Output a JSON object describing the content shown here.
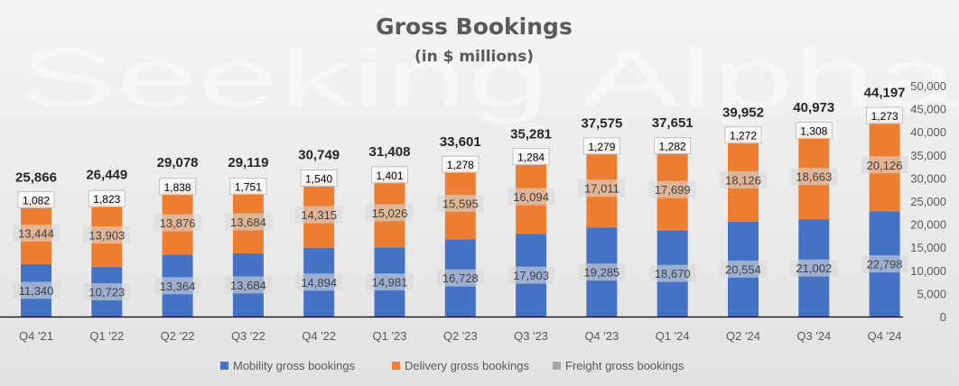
{
  "chart_data": {
    "type": "bar",
    "stacked": true,
    "title": "Gross Bookings",
    "subtitle": "(in $ millions)",
    "watermark": "Seeking Alpha",
    "categories": [
      "Q4 '21",
      "Q1 '22",
      "Q2 '22",
      "Q3 '22",
      "Q4 '22",
      "Q1 '23",
      "Q2 '23",
      "Q3 '23",
      "Q4 '23",
      "Q1 '24",
      "Q2 '24",
      "Q3 '24",
      "Q4 '24"
    ],
    "totals": [
      "25,866",
      "26,449",
      "29,078",
      "29,119",
      "30,749",
      "31,408",
      "33,601",
      "35,281",
      "37,575",
      "37,651",
      "39,952",
      "40,973",
      "44,197"
    ],
    "series": [
      {
        "name": "Mobility gross bookings",
        "color": "#4472C4",
        "values": [
          11340,
          10723,
          13364,
          13684,
          14894,
          14981,
          16728,
          17903,
          19285,
          18670,
          20554,
          21002,
          22798
        ],
        "labels": [
          "11,340",
          "10,723",
          "13,364",
          "13,684",
          "14,894",
          "14,981",
          "16,728",
          "17,903",
          "19,285",
          "18,670",
          "20,554",
          "21,002",
          "22,798"
        ]
      },
      {
        "name": "Delivery gross bookings",
        "color": "#ED7D31",
        "values": [
          13444,
          13903,
          13876,
          13684,
          14315,
          15026,
          15595,
          16094,
          17011,
          17699,
          18126,
          18663,
          20126
        ],
        "labels": [
          "13,444",
          "13,903",
          "13,876",
          "13,684",
          "14,315",
          "15,026",
          "15,595",
          "16,094",
          "17,011",
          "17,699",
          "18,126",
          "18,663",
          "20,126"
        ]
      },
      {
        "name": "Freight gross bookings",
        "color": "#A5A5A5",
        "values": [
          1082,
          1823,
          1838,
          1751,
          1540,
          1401,
          1278,
          1284,
          1279,
          1282,
          1272,
          1308,
          1273
        ],
        "labels": [
          "1,082",
          "1,823",
          "1,838",
          "1,751",
          "1,540",
          "1,401",
          "1,278",
          "1,284",
          "1,279",
          "1,282",
          "1,272",
          "1,308",
          "1,273"
        ]
      }
    ],
    "y_axis": {
      "min": 0,
      "max": 50000,
      "step": 5000,
      "position": "right",
      "tick_labels": [
        "0",
        "5,000",
        "10,000",
        "15,000",
        "20,000",
        "25,000",
        "30,000",
        "35,000",
        "40,000",
        "45,000",
        "50,000"
      ]
    },
    "legend": "bottom"
  }
}
